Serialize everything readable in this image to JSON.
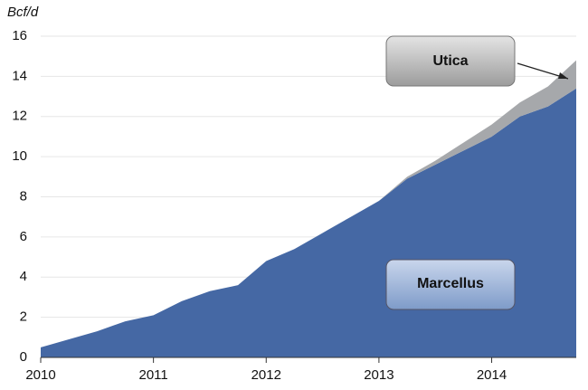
{
  "chart_data": {
    "type": "stacked-area",
    "y_label": "Bcf/d",
    "x": [
      2010,
      2010.25,
      2010.5,
      2010.75,
      2011,
      2011.25,
      2011.5,
      2011.75,
      2012,
      2012.25,
      2012.5,
      2012.75,
      2013,
      2013.25,
      2013.5,
      2013.75,
      2014,
      2014.25,
      2014.5,
      2014.75
    ],
    "series": [
      {
        "name": "Marcellus",
        "color": "#4568a4",
        "values": [
          0.5,
          0.9,
          1.3,
          1.8,
          2.1,
          2.8,
          3.3,
          3.6,
          4.8,
          5.4,
          6.2,
          7.0,
          7.8,
          8.9,
          9.6,
          10.3,
          11.0,
          12.0,
          12.5,
          13.4
        ]
      },
      {
        "name": "Utica",
        "color": "#a6a8ab",
        "values": [
          0,
          0,
          0,
          0,
          0,
          0,
          0,
          0,
          0,
          0,
          0,
          0,
          0,
          0.1,
          0.2,
          0.4,
          0.6,
          0.7,
          1.0,
          1.4
        ]
      }
    ],
    "xlim": [
      2010,
      2014.75
    ],
    "xticks": [
      2010,
      2011,
      2012,
      2013,
      2014
    ],
    "ylim": [
      0,
      16
    ],
    "yticks": [
      0,
      2,
      4,
      6,
      8,
      10,
      12,
      14,
      16
    ],
    "grid": true
  }
}
